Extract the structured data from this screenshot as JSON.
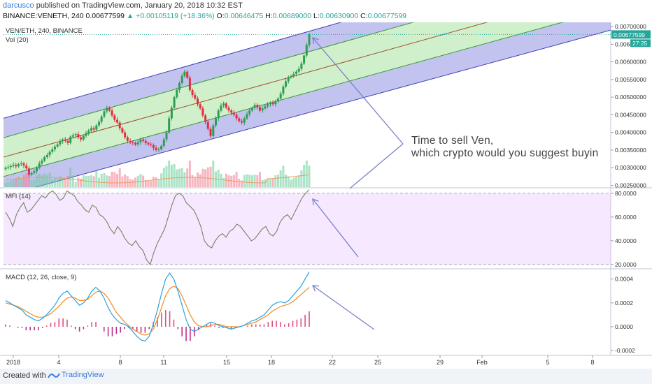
{
  "header": {
    "author": "darcusco",
    "published_text": "published on TradingView.com, January 20, 2018 10:32 EST",
    "symbol": "BINANCE:VENETH, 240",
    "last": "0.00677599",
    "change": "▲ +0.00105119 (+18.36%)",
    "o_label": "O:",
    "o_value": "0.00646475",
    "h_label": "H:",
    "h_value": "0.00689000",
    "l_label": "L:",
    "l_value": "0.00630900",
    "c_label": "C:",
    "c_value": "0.00677599"
  },
  "footer": {
    "created_with": "Created with",
    "brand": "TradingView"
  },
  "chart_data": [
    {
      "type": "candlestick",
      "title": "VEN/ETH, 240, BINANCE",
      "volume_label": "Vol (20)",
      "price_ticks": [
        "0.00700000",
        "0.00650000",
        "0.00600000",
        "0.00550000",
        "0.00500000",
        "0.00450000",
        "0.00400000",
        "0.00350000",
        "0.00300000",
        "0.00250000"
      ],
      "last_price_label": "0.00677599",
      "countdown_label": "27:25",
      "ylim": [
        0.00245,
        0.00712
      ],
      "close_series": [
        0.003,
        0.00302,
        0.00305,
        0.00308,
        0.00304,
        0.0031,
        0.00312,
        0.00306,
        0.00298,
        0.0028,
        0.00285,
        0.0029,
        0.003,
        0.00312,
        0.0032,
        0.0033,
        0.00336,
        0.00345,
        0.00352,
        0.0036,
        0.00366,
        0.00375,
        0.0038,
        0.00376,
        0.0037,
        0.00388,
        0.00392,
        0.00395,
        0.00386,
        0.0038,
        0.0039,
        0.00398,
        0.00405,
        0.00412,
        0.00408,
        0.0042,
        0.0043,
        0.00445,
        0.0046,
        0.0047,
        0.00462,
        0.00448,
        0.00436,
        0.00428,
        0.00412,
        0.004,
        0.00386,
        0.00376,
        0.00372,
        0.0037,
        0.00366,
        0.00372,
        0.0038,
        0.00376,
        0.0037,
        0.00366,
        0.00364,
        0.00356,
        0.0035,
        0.00352,
        0.00362,
        0.0038,
        0.004,
        0.0044,
        0.0047,
        0.005,
        0.0052,
        0.0054,
        0.0056,
        0.00572,
        0.00555,
        0.0052,
        0.00506,
        0.00496,
        0.0048,
        0.00468,
        0.00448,
        0.0043,
        0.0041,
        0.0039,
        0.0042,
        0.0044,
        0.00462,
        0.00476,
        0.00482,
        0.0047,
        0.00462,
        0.00456,
        0.0045,
        0.0044,
        0.00432,
        0.00428,
        0.0044,
        0.00452,
        0.00462,
        0.0047,
        0.00478,
        0.00472,
        0.00462,
        0.00468,
        0.00474,
        0.0048,
        0.00484,
        0.0048,
        0.00488,
        0.00496,
        0.0051,
        0.0053,
        0.00545,
        0.00556,
        0.0056,
        0.00566,
        0.00572,
        0.0058,
        0.00595,
        0.00618,
        0.00648,
        0.00677599
      ],
      "price_max": 0.00689,
      "price_min": 0.00278,
      "channel": {
        "x_start": 0,
        "x_end": 1,
        "outer_top": [
          0.0044,
          0.0093
        ],
        "inner_top": [
          0.00385,
          0.0087
        ],
        "middle": [
          0.0033,
          0.0081
        ],
        "inner_bottom": [
          0.00275,
          0.0075
        ],
        "outer_bottom": [
          0.0022,
          0.0069
        ]
      },
      "annotation": [
        "Time to sell Ven,",
        "which crypto would you suggest buying?"
      ],
      "annotation_visible": [
        "Time to sell Ven,",
        "which crypto would you suggest buyin"
      ]
    },
    {
      "type": "line",
      "title": "MFI (14)",
      "ticks": [
        "80.0000",
        "60.0000",
        "40.0000",
        "20.0000"
      ],
      "ylim": [
        17,
        84
      ],
      "bands": [
        20,
        80
      ],
      "values": [
        64,
        59,
        52,
        62,
        68,
        72,
        64,
        66,
        70,
        74,
        78,
        76,
        80,
        82,
        79,
        74,
        76,
        82,
        80,
        78,
        73,
        70,
        66,
        64,
        70,
        68,
        62,
        60,
        56,
        50,
        46,
        52,
        48,
        42,
        38,
        36,
        40,
        35,
        32,
        24,
        20,
        30,
        38,
        44,
        50,
        60,
        70,
        78,
        80,
        78,
        72,
        69,
        66,
        60,
        52,
        40,
        36,
        34,
        40,
        44,
        46,
        43,
        48,
        50,
        54,
        52,
        48,
        44,
        40,
        42,
        46,
        50,
        52,
        46,
        44,
        48,
        56,
        60,
        62,
        58,
        64,
        70,
        76,
        80,
        83
      ]
    },
    {
      "type": "line+histogram",
      "title": "MACD (12, 26, close, 9)",
      "ticks": [
        "0.0004",
        "0.0002",
        "0.0000",
        "-0.0002"
      ],
      "ylim": [
        -0.00024,
        0.00048
      ],
      "macd": [
        0.00022,
        0.0002,
        0.00018,
        0.00016,
        0.00014,
        0.0001,
        8e-05,
        6e-05,
        5e-05,
        7e-05,
        0.0001,
        0.00014,
        0.00018,
        0.00024,
        0.00028,
        0.0003,
        0.00026,
        0.00022,
        0.00018,
        0.0002,
        0.00024,
        0.0003,
        0.00033,
        0.0003,
        0.00024,
        0.00016,
        0.0001,
        6e-05,
        3e-05,
        2e-05,
        0.0,
        -4e-05,
        -8e-05,
        -0.00011,
        -0.00012,
        -8e-05,
        2e-05,
        0.00014,
        0.00028,
        0.0004,
        0.00045,
        0.0004,
        0.0003,
        0.00018,
        6e-05,
        -2e-05,
        -4e-05,
        -2e-05,
        0.0,
        2e-05,
        4e-05,
        3e-05,
        1e-05,
        0.0,
        -1e-05,
        -2e-05,
        -1e-05,
        0.0,
        1e-05,
        3e-05,
        5e-05,
        6e-05,
        8e-05,
        0.0001,
        0.00014,
        0.00018,
        0.0002,
        0.00021,
        0.0002,
        0.00022,
        0.00026,
        0.0003,
        0.00034,
        0.0004,
        0.00046
      ],
      "signal": [
        0.0002,
        0.00019,
        0.00018,
        0.00017,
        0.00015,
        0.00013,
        0.00011,
        9e-05,
        8e-05,
        8e-05,
        9e-05,
        0.00011,
        0.00014,
        0.00017,
        0.00021,
        0.00024,
        0.00025,
        0.00024,
        0.00022,
        0.00022,
        0.00023,
        0.00026,
        0.00029,
        0.0003,
        0.00028,
        0.00024,
        0.00018,
        0.00012,
        8e-05,
        4e-05,
        1e-05,
        -2e-05,
        -4e-05,
        -6e-05,
        -7e-05,
        -6e-05,
        -2e-05,
        6e-05,
        0.00016,
        0.00026,
        0.00032,
        0.00034,
        0.00032,
        0.00026,
        0.00018,
        0.0001,
        4e-05,
        1e-05,
        0.0,
        0.0,
        1e-05,
        2e-05,
        2e-05,
        1e-05,
        0.0,
        0.0,
        0.0,
        0.0,
        1e-05,
        2e-05,
        3e-05,
        4e-05,
        6e-05,
        8e-05,
        0.0001,
        0.00013,
        0.00015,
        0.00017,
        0.00018,
        0.00019,
        0.00021,
        0.00024,
        0.00027,
        0.0003,
        0.00033
      ],
      "histogram": [
        2e-05,
        1e-05,
        0.0,
        -1e-05,
        -1e-05,
        -3e-05,
        -3e-05,
        -3e-05,
        -3e-05,
        -1e-05,
        1e-05,
        3e-05,
        4e-05,
        7e-05,
        7e-05,
        6e-05,
        1e-05,
        -2e-05,
        -4e-05,
        -2e-05,
        1e-05,
        4e-05,
        4e-05,
        0.0,
        -4e-05,
        -8e-05,
        -8e-05,
        -6e-05,
        -5e-05,
        -2e-05,
        -1e-05,
        -2e-05,
        -4e-05,
        -5e-05,
        -5e-05,
        -2e-05,
        4e-05,
        8e-05,
        0.00012,
        0.00014,
        0.00013,
        6e-05,
        -2e-05,
        -8e-05,
        -0.00012,
        -0.00012,
        -8e-05,
        -3e-05,
        0.0,
        2e-05,
        3e-05,
        1e-05,
        -1e-05,
        -1e-05,
        -1e-05,
        -2e-05,
        -1e-05,
        0.0,
        0.0,
        1e-05,
        2e-05,
        2e-05,
        2e-05,
        2e-05,
        4e-05,
        5e-05,
        5e-05,
        4e-05,
        2e-05,
        3e-05,
        5e-05,
        6e-05,
        7e-05,
        0.0001,
        0.00013
      ]
    }
  ],
  "x_axis": {
    "labels": [
      "2018",
      "4",
      "8",
      "11",
      "15",
      "18",
      "22",
      "25",
      "29",
      "Feb",
      "5",
      "8"
    ]
  }
}
